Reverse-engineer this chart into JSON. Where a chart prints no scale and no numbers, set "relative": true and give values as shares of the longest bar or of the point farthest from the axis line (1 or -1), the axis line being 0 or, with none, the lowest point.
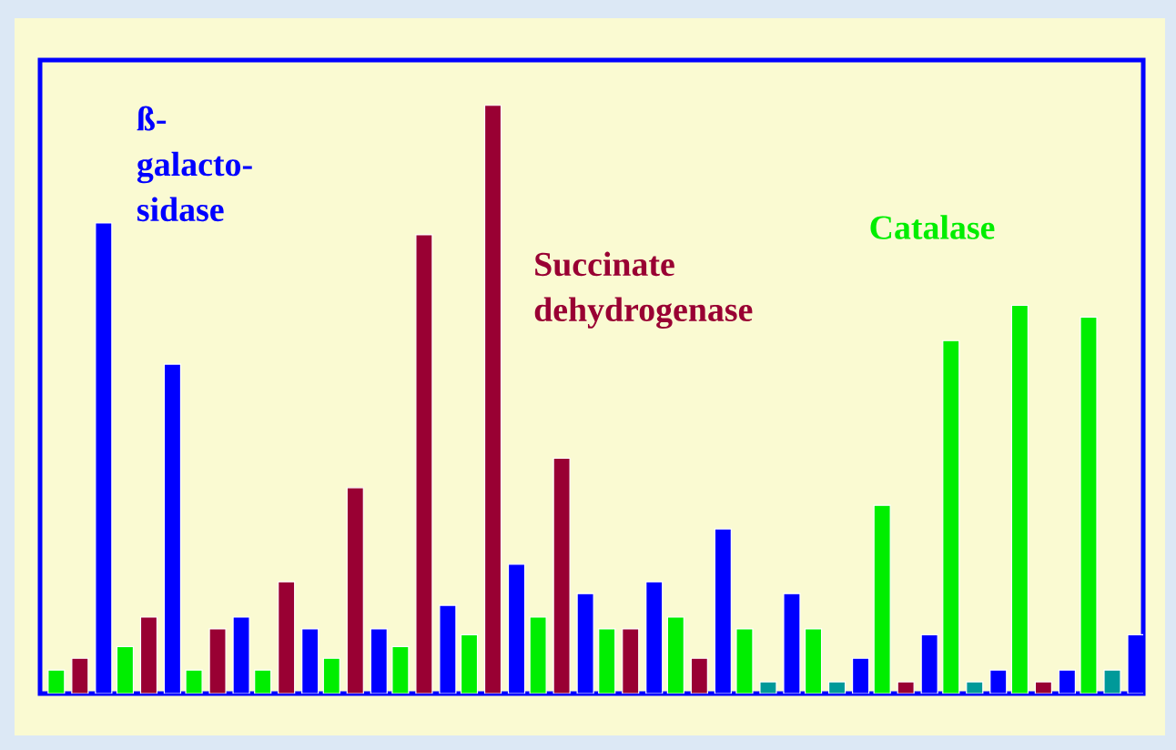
{
  "chart_data": {
    "type": "bar",
    "relative": true,
    "categories": [
      null,
      null,
      null,
      null,
      null,
      null,
      null,
      null,
      null,
      null,
      null,
      null,
      null,
      null,
      null,
      null
    ],
    "series": [
      {
        "name": "Catalase",
        "color": "#00ee00",
        "values": [
          0.04,
          0.08,
          0.04,
          0.04,
          0.06,
          0.08,
          0.1,
          0.13,
          0.11,
          0.13,
          0.11,
          0.11,
          0.32,
          0.6,
          0.66,
          0.64
        ]
      },
      {
        "name": "Succinate dehydrogenase",
        "color": "#990033",
        "colors": [
          "#990033",
          "#990033",
          "#990033",
          "#990033",
          "#990033",
          "#990033",
          "#990033",
          "#990033",
          "#990033",
          "#990033",
          "#009999",
          "#009999",
          "#990033",
          "#009999",
          "#990033",
          "#009999"
        ],
        "values": [
          0.06,
          0.13,
          0.11,
          0.19,
          0.35,
          0.78,
          1,
          0.4,
          0.11,
          0.06,
          0.02,
          0.02,
          0.02,
          0.02,
          0.02,
          0.04
        ]
      },
      {
        "name": "ß-galacto-sidase",
        "color": "#0000ff",
        "values": [
          0.8,
          0.56,
          0.13,
          0.11,
          0.11,
          0.15,
          0.22,
          0.17,
          0.19,
          0.28,
          0.17,
          0.06,
          0.1,
          0.04,
          0.04,
          0.1
        ]
      }
    ]
  }
}
